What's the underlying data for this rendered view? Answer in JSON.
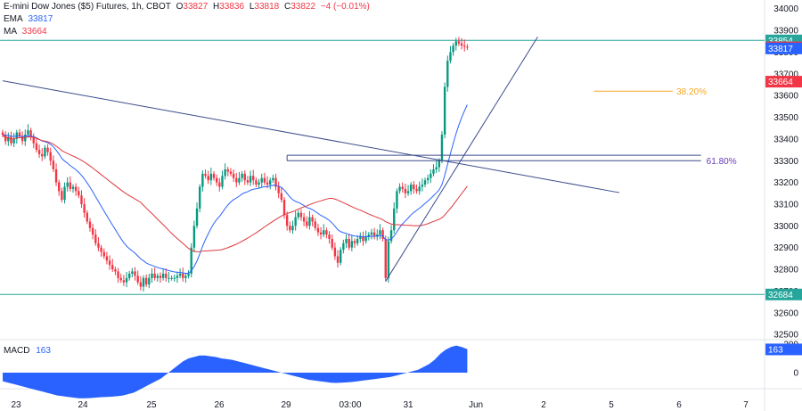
{
  "header": {
    "symbol": "E-mini Dow Jones ($5) Futures, 1h, CBOT",
    "o_label": "O",
    "o": "33827",
    "h_label": "H",
    "h": "33836",
    "l_label": "L",
    "l": "33818",
    "c_label": "C",
    "c": "33822",
    "change": "−4 (−0.01%)",
    "ema_label": "EMA",
    "ema_value": "33817",
    "ma_label": "MA",
    "ma_value": "33664",
    "macd_label": "MACD",
    "macd_value": "163"
  },
  "colors": {
    "up": "#089981",
    "down": "#f23645",
    "ema": "#2962ff",
    "ma": "#e0383e",
    "level": "#26a69a",
    "trend": "#3c4c8c",
    "fib382": "#f5a623",
    "fib618": "#673ab7",
    "macd": "#2962ff",
    "price_tag": "#f23645"
  },
  "chart_data": {
    "type": "candlestick",
    "title": "E-mini Dow Jones ($5) Futures, 1h, CBOT",
    "x_ticks": [
      "23",
      "24",
      "25",
      "26",
      "29",
      "03:00",
      "31",
      "Jun",
      "2",
      "5",
      "6",
      "7"
    ],
    "y_ticks": [
      34000,
      33900,
      33800,
      33700,
      33600,
      33500,
      33400,
      33300,
      33200,
      33100,
      33000,
      32900,
      32800,
      32700,
      32600,
      32500
    ],
    "ylim": [
      32480,
      34040
    ],
    "last": {
      "open": 33827,
      "high": 33836,
      "low": 33818,
      "close": 33822,
      "change": -4,
      "change_pct": -0.01
    },
    "closes": [
      33420,
      33390,
      33410,
      33380,
      33400,
      33430,
      33415,
      33390,
      33420,
      33440,
      33410,
      33380,
      33350,
      33330,
      33320,
      33360,
      33340,
      33300,
      33260,
      33200,
      33160,
      33120,
      33180,
      33200,
      33170,
      33180,
      33160,
      33140,
      33100,
      33060,
      33020,
      32990,
      32960,
      32920,
      32900,
      32880,
      32860,
      32840,
      32820,
      32800,
      32790,
      32760,
      32750,
      32740,
      32760,
      32780,
      32790,
      32770,
      32740,
      32720,
      32760,
      32730,
      32760,
      32780,
      32760,
      32770,
      32760,
      32780,
      32760,
      32760,
      32760,
      32760,
      32770,
      32780,
      32760,
      32770,
      32780,
      32900,
      33000,
      33080,
      33180,
      33240,
      33230,
      33210,
      33240,
      33220,
      33200,
      33180,
      33230,
      33260,
      33250,
      33240,
      33220,
      33200,
      33220,
      33240,
      33210,
      33200,
      33230,
      33210,
      33190,
      33200,
      33220,
      33200,
      33190,
      33210,
      33220,
      33180,
      33150,
      33120,
      33050,
      33000,
      32980,
      33000,
      33040,
      33060,
      33040,
      33020,
      33000,
      33040,
      33020,
      32990,
      32970,
      32960,
      32980,
      32960,
      32940,
      32900,
      32860,
      32830,
      32890,
      32920,
      32940,
      32900,
      32930,
      32920,
      32940,
      32950,
      32930,
      32950,
      32960,
      32970,
      32950,
      32960,
      32980,
      32940,
      32760,
      32930,
      32980,
      33080,
      33160,
      33180,
      33170,
      33150,
      33160,
      33190,
      33170,
      33160,
      33180,
      33190,
      33210,
      33220,
      33240,
      33260,
      33270,
      33300,
      33420,
      33640,
      33760,
      33800,
      33830,
      33850,
      33840,
      33830,
      33825,
      33822
    ],
    "ema_period": 20,
    "ma_period": 50,
    "levels": [
      {
        "name": "resistance",
        "value": 33854
      },
      {
        "name": "support",
        "value": 32684
      }
    ],
    "fib_382": 33620,
    "fib_618": 33300,
    "fib_618_upper": 33325,
    "fib_382_label": "38.20%",
    "fib_618_label": "61.80%",
    "downtrend": {
      "from": [
        0,
        33668
      ],
      "to": [
        219,
        33153
      ]
    },
    "uptrend": {
      "from": [
        136,
        32745
      ],
      "to": [
        190,
        33870
      ]
    },
    "axis_tags": [
      {
        "label": "33854",
        "value": 33854,
        "color": "#26a69a"
      },
      {
        "label": "33822",
        "value": 33822,
        "color": "#f23645"
      },
      {
        "label": "33817",
        "value": 33817,
        "color": "#2962ff"
      },
      {
        "label": "33664",
        "value": 33664,
        "color": "#f23645"
      },
      {
        "label": "32684",
        "value": 32684,
        "color": "#26a69a"
      }
    ],
    "macd": {
      "value": 163,
      "y_ticks": [
        "200",
        "0"
      ],
      "values": [
        -60,
        -70,
        -80,
        -90,
        -100,
        -110,
        -120,
        -130,
        -140,
        -150,
        -160,
        -165,
        -170,
        -175,
        -180,
        -180,
        -178,
        -175,
        -172,
        -170,
        -168,
        -165,
        -160,
        -150,
        -140,
        -120,
        -100,
        -80,
        -60,
        -40,
        -10,
        20,
        50,
        80,
        100,
        110,
        120,
        120,
        115,
        110,
        100,
        95,
        90,
        80,
        70,
        60,
        50,
        40,
        30,
        20,
        10,
        0,
        -10,
        -20,
        -30,
        -40,
        -50,
        -55,
        -60,
        -65,
        -70,
        -72,
        -70,
        -68,
        -65,
        -60,
        -55,
        -50,
        -45,
        -40,
        -35,
        -30,
        -20,
        -10,
        0,
        10,
        20,
        40,
        60,
        90,
        130,
        160,
        180,
        190,
        180,
        165
      ]
    }
  }
}
